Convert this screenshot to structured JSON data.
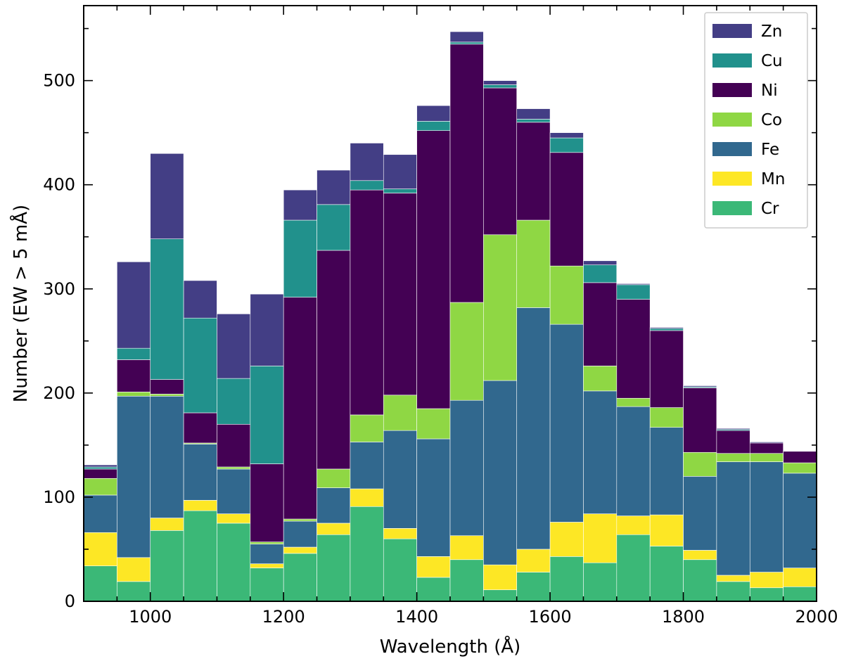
{
  "chart_data": {
    "type": "bar",
    "stacked": true,
    "xlabel": "Wavelength (Å)",
    "ylabel": "Number  (EW > 5 mÅ)",
    "xlim": [
      900,
      2000
    ],
    "ylim": [
      0,
      572
    ],
    "xticks": [
      1000,
      1200,
      1400,
      1600,
      1800,
      2000
    ],
    "yticks": [
      0,
      100,
      200,
      300,
      400,
      500
    ],
    "xtick_labels": [
      "1000",
      "1200",
      "1400",
      "1600",
      "1800",
      "2000"
    ],
    "ytick_labels": [
      "0",
      "100",
      "200",
      "300",
      "400",
      "500"
    ],
    "grid": false,
    "legend_position": "top-right",
    "bin_width": 50,
    "bin_start": [
      900,
      950,
      1000,
      1050,
      1100,
      1150,
      1200,
      1250,
      1300,
      1350,
      1400,
      1450,
      1500,
      1550,
      1600,
      1650,
      1700,
      1750,
      1800,
      1850,
      1900,
      1950
    ],
    "stack_order_bottom_to_top": [
      "Cr",
      "Mn",
      "Fe",
      "Co",
      "Ni",
      "Cu",
      "Zn"
    ],
    "series": [
      {
        "name": "Cr",
        "color": "#3bb877",
        "values": [
          34,
          19,
          68,
          87,
          75,
          32,
          46,
          64,
          91,
          60,
          23,
          40,
          11,
          28,
          43,
          37,
          64,
          53,
          40,
          19,
          13,
          14
        ]
      },
      {
        "name": "Mn",
        "color": "#fde725",
        "values": [
          32,
          23,
          12,
          10,
          9,
          4,
          6,
          11,
          17,
          10,
          20,
          23,
          24,
          22,
          33,
          47,
          18,
          30,
          9,
          6,
          15,
          18
        ]
      },
      {
        "name": "Fe",
        "color": "#31688e",
        "values": [
          36,
          155,
          117,
          54,
          43,
          19,
          25,
          34,
          45,
          94,
          113,
          130,
          177,
          232,
          190,
          118,
          105,
          84,
          71,
          109,
          106,
          91
        ]
      },
      {
        "name": "Co",
        "color": "#8fd744",
        "values": [
          16,
          4,
          2,
          1,
          2,
          2,
          2,
          18,
          26,
          34,
          29,
          94,
          140,
          84,
          56,
          24,
          8,
          19,
          23,
          8,
          8,
          10
        ]
      },
      {
        "name": "Ni",
        "color": "#440154",
        "values": [
          9,
          31,
          14,
          29,
          41,
          75,
          213,
          210,
          216,
          194,
          267,
          248,
          141,
          94,
          109,
          80,
          95,
          74,
          62,
          22,
          10,
          11
        ]
      },
      {
        "name": "Cu",
        "color": "#21918c",
        "values": [
          2,
          11,
          135,
          91,
          44,
          94,
          74,
          44,
          9,
          4,
          9,
          2,
          3,
          3,
          14,
          17,
          14,
          2,
          1,
          1,
          0,
          0
        ]
      },
      {
        "name": "Zn",
        "color": "#433e85",
        "values": [
          2,
          83,
          82,
          36,
          62,
          69,
          29,
          33,
          36,
          33,
          15,
          10,
          4,
          10,
          5,
          4,
          1,
          1,
          1,
          1,
          1,
          0
        ]
      }
    ],
    "legend_order": [
      "Zn",
      "Cu",
      "Ni",
      "Co",
      "Fe",
      "Mn",
      "Cr"
    ]
  }
}
